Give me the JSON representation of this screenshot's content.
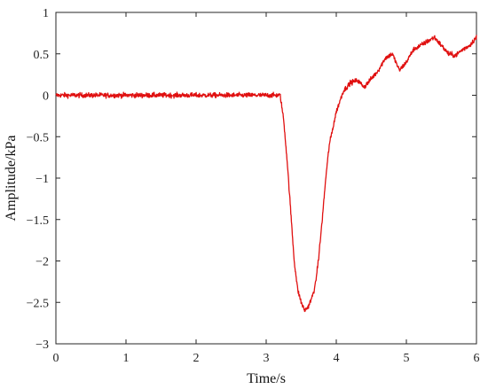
{
  "chart_data": {
    "type": "line",
    "title": "",
    "xlabel": "Time/s",
    "ylabel": "Amplitude/kPa",
    "xlim": [
      0,
      6
    ],
    "ylim": [
      -3,
      1
    ],
    "x_ticks": [
      0,
      1,
      2,
      3,
      4,
      5,
      6
    ],
    "x_tick_labels": [
      "0",
      "1",
      "2",
      "3",
      "4",
      "5",
      "6"
    ],
    "y_ticks": [
      1,
      0.5,
      0,
      -0.5,
      -1,
      -1.5,
      -2,
      -2.5,
      -3
    ],
    "y_tick_labels": [
      "1",
      "0.5",
      "0",
      "−0.5",
      "−1",
      "−1.5",
      "−2",
      "−2.5",
      "−3"
    ],
    "grid": false,
    "legend": "none",
    "series": [
      {
        "color": "#e01010",
        "x": [
          0,
          0.5,
          1.0,
          1.5,
          2.0,
          2.5,
          3.0,
          3.2,
          3.25,
          3.3,
          3.35,
          3.4,
          3.45,
          3.5,
          3.55,
          3.6,
          3.65,
          3.7,
          3.75,
          3.8,
          3.85,
          3.9,
          4.0,
          4.1,
          4.2,
          4.3,
          4.4,
          4.5,
          4.6,
          4.7,
          4.8,
          4.9,
          5.0,
          5.1,
          5.2,
          5.3,
          5.4,
          5.5,
          5.6,
          5.7,
          5.8,
          5.9,
          6.0
        ],
        "y": [
          0.0,
          0.0,
          0.0,
          0.0,
          0.0,
          0.0,
          0.0,
          0.0,
          -0.3,
          -0.8,
          -1.4,
          -2.0,
          -2.35,
          -2.5,
          -2.6,
          -2.55,
          -2.45,
          -2.3,
          -1.95,
          -1.5,
          -1.0,
          -0.6,
          -0.2,
          0.05,
          0.15,
          0.18,
          0.1,
          0.2,
          0.3,
          0.45,
          0.5,
          0.3,
          0.4,
          0.55,
          0.6,
          0.65,
          0.7,
          0.6,
          0.5,
          0.48,
          0.55,
          0.6,
          0.7
        ]
      }
    ]
  }
}
